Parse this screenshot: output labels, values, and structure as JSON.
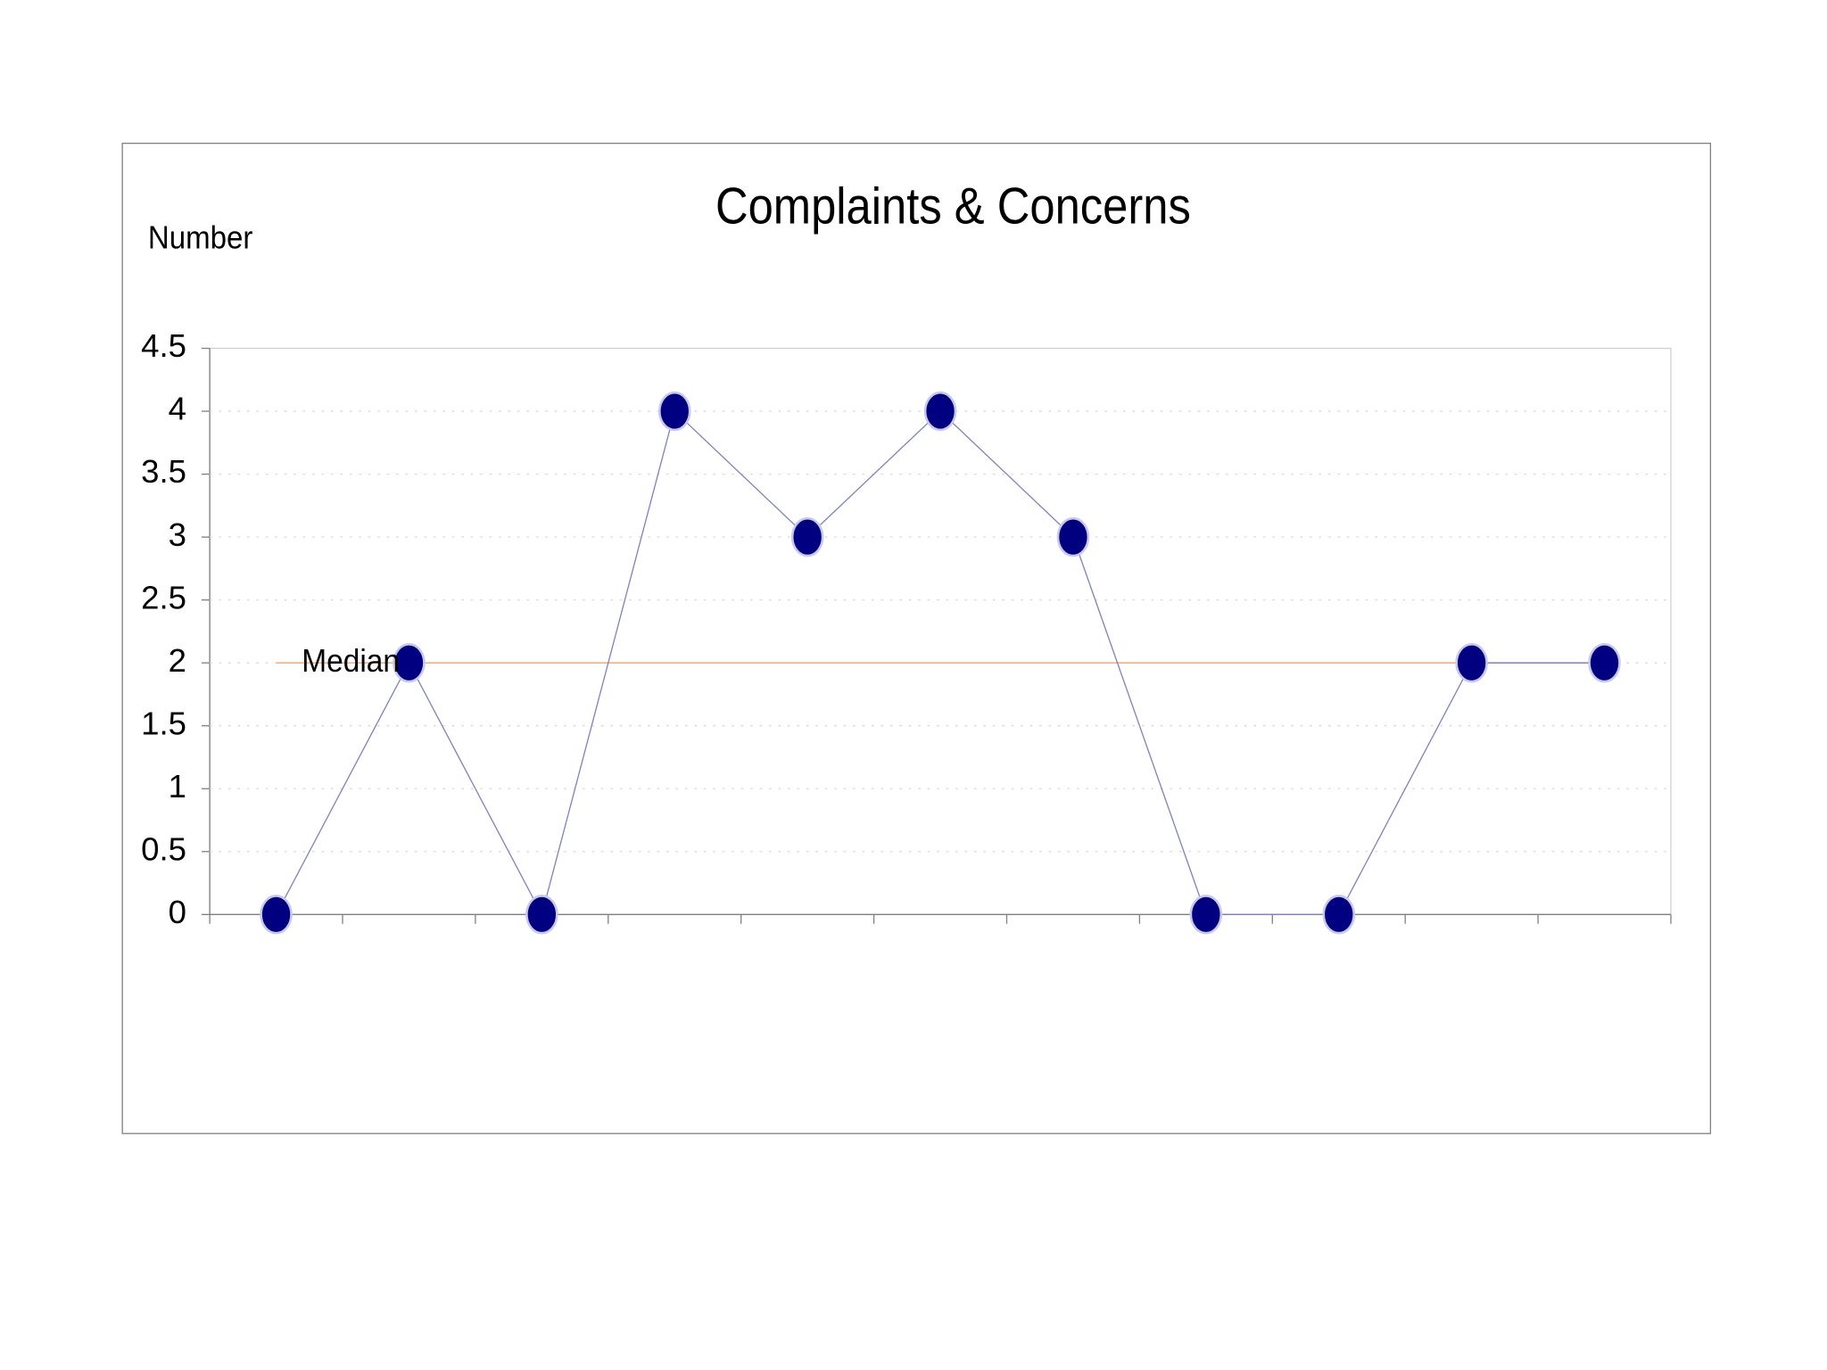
{
  "chart_data": {
    "type": "line",
    "title": "Complaints & Concerns",
    "y_label": "Number",
    "categories": [
      null,
      null,
      null,
      null,
      null,
      null,
      null,
      null,
      null,
      null,
      null
    ],
    "series": [
      {
        "name": null,
        "color": "#000080",
        "line_color": "#8080c0",
        "values": [
          0,
          2,
          0,
          4,
          3,
          4,
          3,
          0,
          0,
          2,
          2
        ]
      }
    ],
    "median": {
      "label": "Median",
      "value": 2,
      "color": "#f4b183",
      "label_color": "#e00000"
    },
    "ylim": [
      0,
      4.5
    ],
    "yticks": [
      0,
      0.5,
      1,
      1.5,
      2,
      2.5,
      3,
      3.5,
      4,
      4.5
    ],
    "grid": true
  }
}
